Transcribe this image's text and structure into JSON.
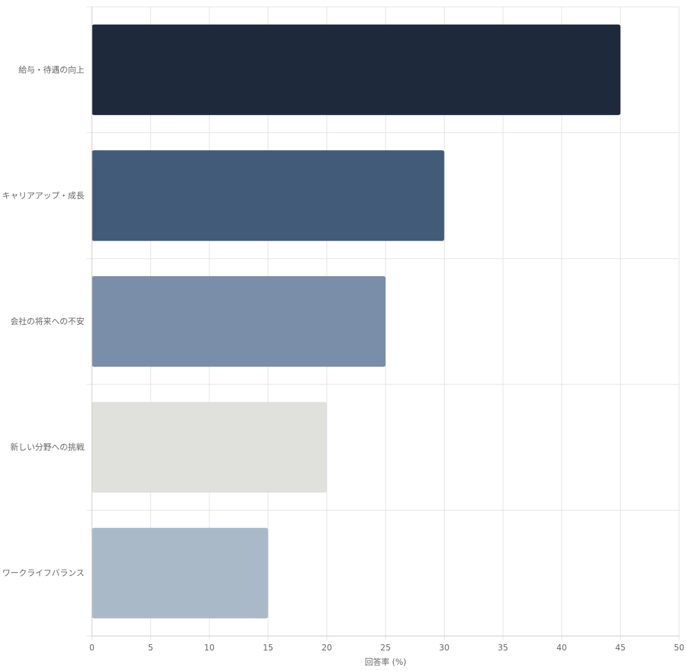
{
  "chart_data": {
    "type": "bar",
    "orientation": "horizontal",
    "categories": [
      "給与・待遇の向上",
      "キャリアアップ・成長",
      "会社の将来への不安",
      "新しい分野への挑戦",
      "ワークライフバランス"
    ],
    "values": [
      45,
      30,
      25,
      20,
      15
    ],
    "colors": [
      "#1e293b",
      "#425b78",
      "#7a8ea9",
      "#e0e0dd",
      "#aab9c8"
    ],
    "title": "",
    "xlabel": "回答率 (%)",
    "ylabel": "",
    "xlim": [
      0,
      50
    ],
    "xticks": [
      "0",
      "5",
      "10",
      "15",
      "20",
      "25",
      "30",
      "35",
      "40",
      "45",
      "50"
    ],
    "grid": true,
    "legend": "none"
  }
}
